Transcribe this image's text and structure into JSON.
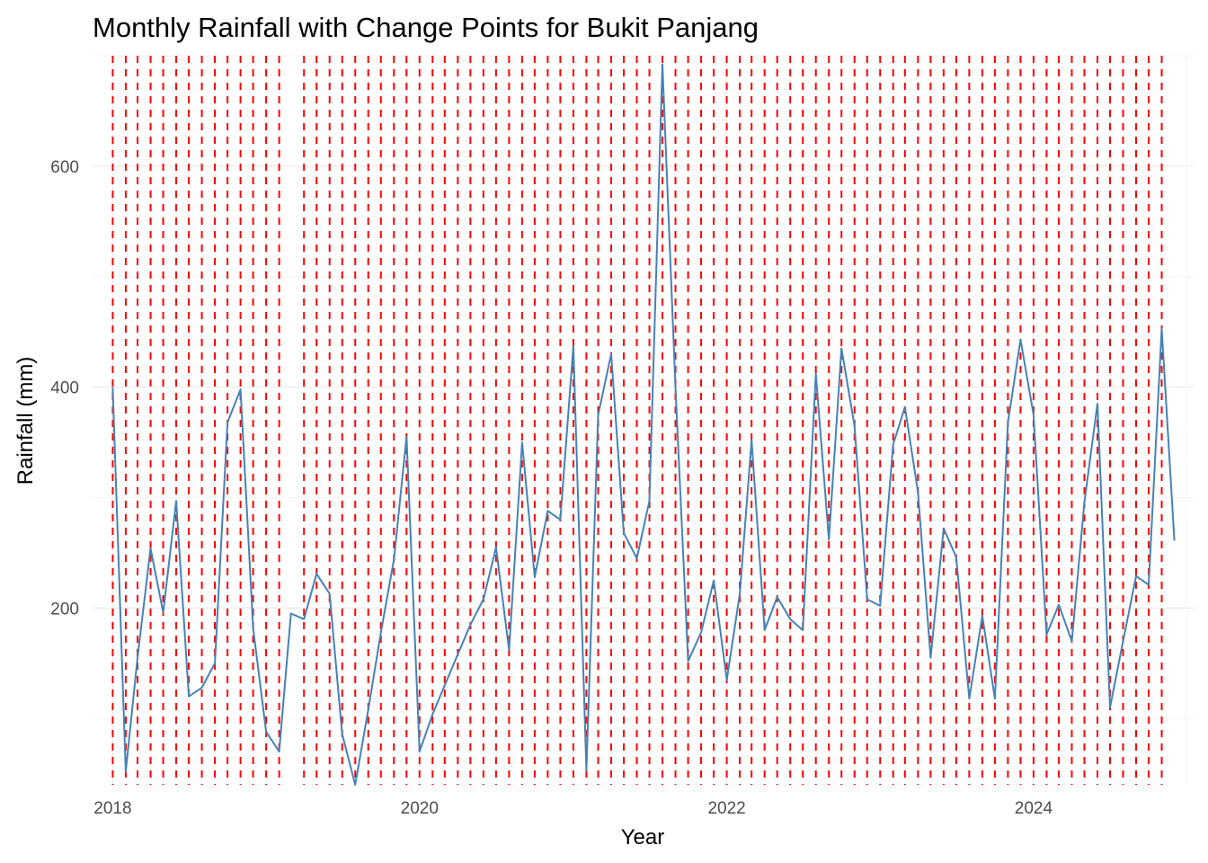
{
  "chart_data": {
    "type": "line",
    "title": "Monthly Rainfall with Change Points for Bukit Panjang",
    "xlabel": "Year",
    "ylabel": "Rainfall (mm)",
    "x_type": "date",
    "xlim": [
      "2017-11-14",
      "2025-01-18"
    ],
    "ylim": [
      40,
      700
    ],
    "x_ticks": [
      "2018-01-01",
      "2020-01-01",
      "2022-01-01",
      "2024-01-01"
    ],
    "x_tick_labels": [
      "2018",
      "2020",
      "2022",
      "2024"
    ],
    "y_ticks": [
      200,
      400,
      600
    ],
    "y_tick_labels": [
      "200",
      "400",
      "600"
    ],
    "grid": true,
    "legend": "none",
    "colors": {
      "series": "#4682b4",
      "change_points": "#ff0000",
      "grid": "#ebebeb"
    },
    "series": [
      {
        "x": [
          "2018-01-01",
          "2018-02-01",
          "2018-03-01",
          "2018-04-01",
          "2018-05-01",
          "2018-06-01",
          "2018-07-01",
          "2018-08-01",
          "2018-09-01",
          "2018-10-01",
          "2018-11-01",
          "2018-12-01",
          "2019-01-01",
          "2019-02-01",
          "2019-03-01",
          "2019-04-01",
          "2019-05-01",
          "2019-06-01",
          "2019-07-01",
          "2019-08-01",
          "2019-09-01",
          "2019-10-01",
          "2019-11-01",
          "2019-12-01",
          "2020-01-01",
          "2020-02-01",
          "2020-03-01",
          "2020-04-01",
          "2020-05-01",
          "2020-06-01",
          "2020-07-01",
          "2020-08-01",
          "2020-09-01",
          "2020-10-01",
          "2020-11-01",
          "2020-12-01",
          "2021-01-01",
          "2021-02-01",
          "2021-03-01",
          "2021-04-01",
          "2021-05-01",
          "2021-06-01",
          "2021-07-01",
          "2021-08-01",
          "2021-09-01",
          "2021-10-01",
          "2021-11-01",
          "2021-12-01",
          "2022-01-01",
          "2022-02-01",
          "2022-03-01",
          "2022-04-01",
          "2022-05-01",
          "2022-06-01",
          "2022-07-01",
          "2022-08-01",
          "2022-09-01",
          "2022-10-01",
          "2022-11-01",
          "2022-12-01",
          "2023-01-01",
          "2023-02-01",
          "2023-03-01",
          "2023-04-01",
          "2023-05-01",
          "2023-06-01",
          "2023-07-01",
          "2023-08-01",
          "2023-09-01",
          "2023-10-01",
          "2023-11-01",
          "2023-12-01",
          "2024-01-01",
          "2024-02-01",
          "2024-03-01",
          "2024-04-01",
          "2024-05-01",
          "2024-06-01",
          "2024-07-01",
          "2024-08-01",
          "2024-09-01",
          "2024-10-01",
          "2024-11-01",
          "2024-12-01"
        ],
        "values": [
          400,
          52,
          155,
          254,
          196,
          297,
          120,
          128,
          150,
          368,
          398,
          182,
          88,
          70,
          195,
          190,
          231,
          213,
          86,
          40,
          108,
          178,
          244,
          355,
          70,
          104,
          130,
          158,
          185,
          208,
          255,
          162,
          350,
          228,
          288,
          280,
          437,
          53,
          375,
          430,
          268,
          245,
          297,
          692,
          400,
          152,
          178,
          225,
          135,
          213,
          352,
          180,
          210,
          190,
          180,
          412,
          262,
          435,
          365,
          208,
          202,
          348,
          382,
          305,
          155,
          272,
          246,
          118,
          193,
          118,
          368,
          443,
          375,
          176,
          203,
          170,
          296,
          385,
          110,
          170,
          229,
          221,
          453,
          261
        ]
      }
    ],
    "change_points": [
      "2018-01-01",
      "2018-02-01",
      "2018-03-01",
      "2018-04-01",
      "2018-05-01",
      "2018-06-01",
      "2018-07-01",
      "2018-08-01",
      "2018-09-01",
      "2018-10-01",
      "2018-11-01",
      "2018-12-01",
      "2019-01-01",
      "2019-02-01",
      "2019-04-01",
      "2019-05-01",
      "2019-06-01",
      "2019-07-01",
      "2019-08-01",
      "2019-09-01",
      "2019-10-01",
      "2019-11-01",
      "2019-12-01",
      "2020-01-01",
      "2020-02-01",
      "2020-03-01",
      "2020-04-01",
      "2020-05-01",
      "2020-06-01",
      "2020-07-01",
      "2020-08-01",
      "2020-09-01",
      "2020-10-01",
      "2020-11-01",
      "2020-12-01",
      "2021-01-01",
      "2021-02-01",
      "2021-03-01",
      "2021-04-01",
      "2021-05-01",
      "2021-06-01",
      "2021-07-01",
      "2021-08-01",
      "2021-09-01",
      "2021-10-01",
      "2021-11-01",
      "2021-12-01",
      "2022-01-01",
      "2022-02-01",
      "2022-03-01",
      "2022-04-01",
      "2022-05-01",
      "2022-06-01",
      "2022-07-01",
      "2022-08-01",
      "2022-09-01",
      "2022-10-01",
      "2022-11-01",
      "2022-12-01",
      "2023-01-01",
      "2023-02-01",
      "2023-03-01",
      "2023-04-01",
      "2023-05-01",
      "2023-06-01",
      "2023-07-01",
      "2023-08-01",
      "2023-09-01",
      "2023-10-01",
      "2023-11-01",
      "2023-12-01",
      "2024-01-01",
      "2024-02-01",
      "2024-03-01",
      "2024-04-01",
      "2024-05-01",
      "2024-06-01",
      "2024-07-01",
      "2024-08-01",
      "2024-09-01",
      "2024-10-01",
      "2024-11-01"
    ]
  }
}
